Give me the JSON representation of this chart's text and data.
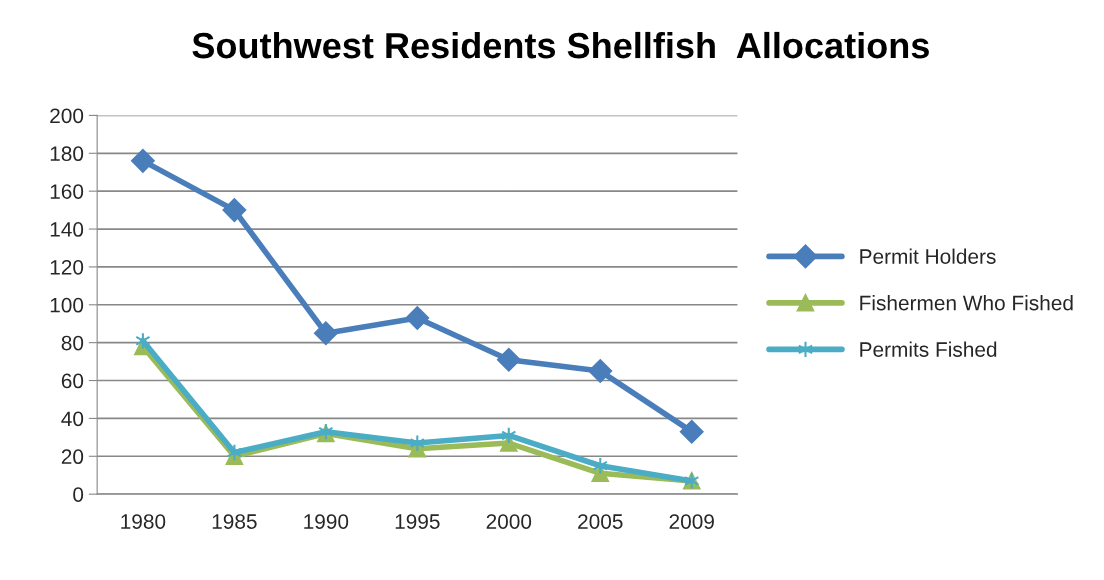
{
  "chart_data": {
    "type": "line",
    "title": "Southwest Residents Shellfish  Allocations",
    "categories": [
      "1980",
      "1985",
      "1990",
      "1995",
      "2000",
      "2005",
      "2009"
    ],
    "series": [
      {
        "name": "Permit Holders",
        "color": "#4a7ebb",
        "marker": "diamond",
        "values": [
          176,
          150,
          85,
          93,
          71,
          65,
          33
        ]
      },
      {
        "name": "Fishermen Who Fished",
        "color": "#9bbb59",
        "marker": "triangle",
        "values": [
          78,
          20,
          32,
          24,
          27,
          11,
          7
        ]
      },
      {
        "name": "Permits Fished",
        "color": "#4bacc6",
        "marker": "cross",
        "values": [
          81,
          22,
          33,
          27,
          31,
          15,
          7
        ]
      }
    ],
    "ylim": [
      0,
      200
    ],
    "yticks": [
      0,
      20,
      40,
      60,
      80,
      100,
      120,
      140,
      160,
      180,
      200
    ],
    "grid": "y",
    "legend": "right",
    "line_style": "solid"
  }
}
